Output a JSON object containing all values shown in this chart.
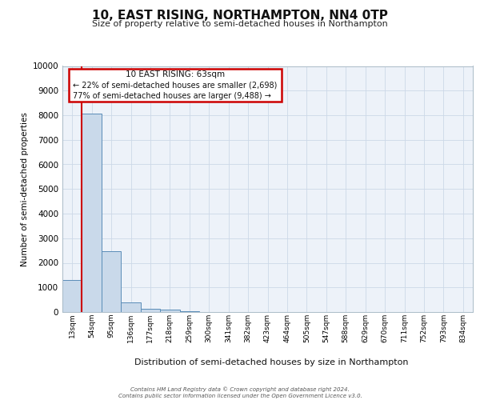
{
  "title": "10, EAST RISING, NORTHAMPTON, NN4 0TP",
  "subtitle": "Size of property relative to semi-detached houses in Northampton",
  "xlabel": "Distribution of semi-detached houses by size in Northampton",
  "ylabel": "Number of semi-detached properties",
  "categories": [
    "13sqm",
    "54sqm",
    "95sqm",
    "136sqm",
    "177sqm",
    "218sqm",
    "259sqm",
    "300sqm",
    "341sqm",
    "382sqm",
    "423sqm",
    "464sqm",
    "505sqm",
    "547sqm",
    "588sqm",
    "629sqm",
    "670sqm",
    "711sqm",
    "752sqm",
    "793sqm",
    "834sqm"
  ],
  "values": [
    1300,
    8050,
    2480,
    390,
    130,
    90,
    20,
    0,
    0,
    0,
    0,
    0,
    0,
    0,
    0,
    0,
    0,
    0,
    0,
    0,
    0
  ],
  "bar_color": "#c9d9ea",
  "bar_edge_color": "#5b8db8",
  "property_line_x": 0.5,
  "annotation_title": "10 EAST RISING: 63sqm",
  "annotation_line1": "← 22% of semi-detached houses are smaller (2,698)",
  "annotation_line2": "77% of semi-detached houses are larger (9,488) →",
  "annotation_box_color": "#cc0000",
  "ylim": [
    0,
    10000
  ],
  "yticks": [
    0,
    1000,
    2000,
    3000,
    4000,
    5000,
    6000,
    7000,
    8000,
    9000,
    10000
  ],
  "grid_color": "#ccd8e8",
  "bg_color": "#edf2f9",
  "footer1": "Contains HM Land Registry data © Crown copyright and database right 2024.",
  "footer2": "Contains public sector information licensed under the Open Government Licence v3.0."
}
